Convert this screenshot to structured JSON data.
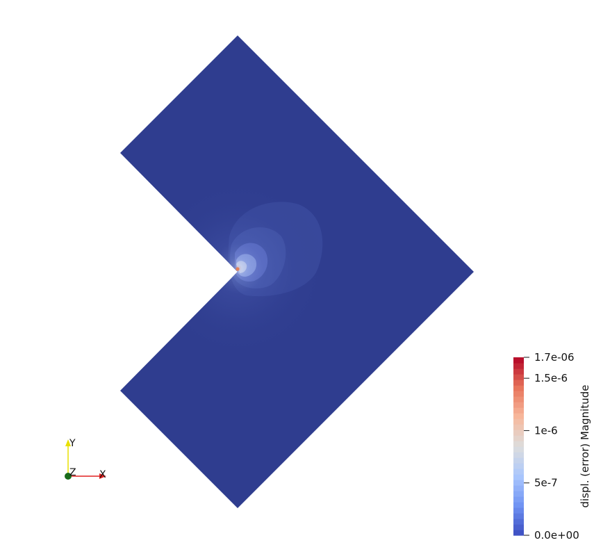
{
  "scene": {
    "background": "#ffffff",
    "mesh_color": "#2f3d8f"
  },
  "colorbar": {
    "title": "displ. (error) Magnitude",
    "min": 0.0,
    "max": 1.7e-06,
    "colors": [
      "#3b4cc0",
      "#6f92f3",
      "#aac7fd",
      "#dddddd",
      "#f7b89c",
      "#e7745b",
      "#b40426"
    ],
    "ticks": [
      {
        "value": 1.7e-06,
        "label": "1.7e-06"
      },
      {
        "value": 1.5e-06,
        "label": "1.5e-6"
      },
      {
        "value": 1e-06,
        "label": "1e-6"
      },
      {
        "value": 5e-07,
        "label": "5e-7"
      },
      {
        "value": 0.0,
        "label": "0.0e+00"
      }
    ]
  },
  "axes": {
    "x_label": "X",
    "y_label": "Y",
    "z_label": "Z",
    "x_color": "#e02020",
    "y_color": "#e8e000",
    "z_color": "#1a6b1a"
  }
}
